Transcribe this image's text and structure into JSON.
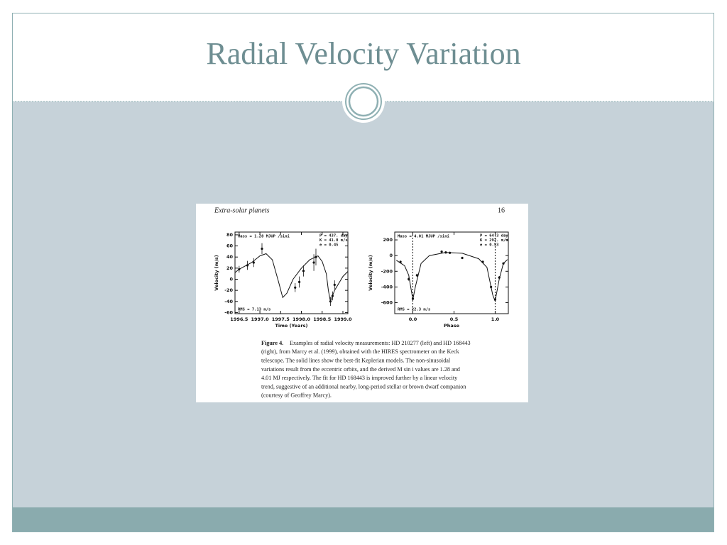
{
  "slide": {
    "title": "Radial Velocity Variation"
  },
  "figure": {
    "header": "Extra-solar planets",
    "page_number": "16",
    "panels": [
      {
        "xlim": [
          1996.4,
          1999.12
        ],
        "ylim": [
          -62,
          85
        ],
        "xticks": [
          1996.5,
          {
            "value": 1997,
            "label": "1997.0"
          },
          1997.5,
          {
            "value": 1998,
            "label": "1998.0"
          },
          1998.5,
          {
            "value": 1999,
            "label": "1999.0"
          }
        ],
        "yticks": [
          -60,
          -40,
          -20,
          0,
          20,
          40,
          60,
          80
        ],
        "xlabel": "Time  (Years)",
        "ylabel": "Velocity  (m/s)",
        "mass": "Mass = 1.28 MJUP /sini",
        "params": [
          "P = 437. day",
          "K = 41.0 m/s",
          "e = 0.45"
        ],
        "rms": "RMS = 7.13 m/s",
        "curve": {
          "x": [
            1996.4,
            1996.5,
            1996.8,
            1997.0,
            1997.15,
            1997.3,
            1997.45,
            1997.55,
            1997.65,
            1997.8,
            1998.0,
            1998.2,
            1998.4,
            1998.5,
            1998.6,
            1998.65,
            1998.7,
            1998.8,
            1999.0,
            1999.12
          ],
          "y": [
            12,
            18,
            30,
            42,
            46,
            35,
            -5,
            -33,
            -25,
            0,
            20,
            35,
            42,
            32,
            10,
            -20,
            -40,
            -20,
            5,
            14
          ]
        },
        "points": {
          "x": [
            1996.5,
            1996.7,
            1996.85,
            1997.05,
            1997.85,
            1997.95,
            1998.05,
            1998.3,
            1998.35,
            1998.7,
            1998.75,
            1998.8
          ],
          "y": [
            18,
            25,
            30,
            55,
            -15,
            -5,
            15,
            30,
            40,
            -40,
            -30,
            -10
          ],
          "err": [
            6,
            8,
            8,
            10,
            8,
            10,
            10,
            15,
            15,
            8,
            8,
            8
          ]
        },
        "dashed_x": []
      },
      {
        "xlim": [
          -0.22,
          1.16
        ],
        "ylim": [
          -740,
          300
        ],
        "xticks": [
          {
            "value": 0,
            "label": "0.0"
          },
          0.5,
          {
            "value": 1,
            "label": "1.0"
          }
        ],
        "yticks": [
          200,
          0,
          -200,
          -400,
          -600
        ],
        "xlabel": "Phase",
        "ylabel": "Velocity  (m/s)",
        "mass": "Mass = 4.01 MJUP /sini",
        "params": [
          "P = 64.3 day",
          "K = 292. m/s",
          "e = 0.53"
        ],
        "rms": "RMS = 22.3 m/s",
        "curve": {
          "x": [
            -0.2,
            -0.1,
            -0.05,
            0,
            0.03,
            0.1,
            0.2,
            0.4,
            0.6,
            0.8,
            0.9,
            0.97,
            1.0,
            1.05,
            1.1,
            1.15
          ],
          "y": [
            -60,
            -130,
            -250,
            -560,
            -400,
            -100,
            0,
            40,
            30,
            -40,
            -150,
            -500,
            -580,
            -300,
            -100,
            -50
          ]
        },
        "points": {
          "x": [
            -0.15,
            -0.05,
            0.0,
            0.05,
            0.35,
            0.4,
            0.45,
            0.6,
            0.85,
            0.95,
            1.0,
            1.05,
            1.1
          ],
          "y": [
            -80,
            -300,
            -550,
            -250,
            50,
            40,
            35,
            -30,
            -80,
            -400,
            -560,
            -280,
            -100
          ],
          "err": [
            15,
            20,
            25,
            20,
            15,
            15,
            15,
            15,
            15,
            20,
            25,
            20,
            15
          ]
        },
        "dashed_x": [
          0,
          1
        ]
      }
    ],
    "caption": {
      "label": "Figure 4.",
      "lines": [
        "Examples of radial velocity measurements: HD 210277 (left) and HD 168443",
        "(right), from Marcy et al. (1999), obtained with the HIRES spectrometer on the Keck",
        "telescope.  The solid lines show the best-fit Keplerian models.  The non-sinusoidal",
        "variations result from the eccentric orbits, and the derived M sin i values are 1.28 and",
        "4.01 MJ respectively.  The fit for HD 168443 is improved further by a linear velocity",
        "trend, suggestive of an additional nearby, long-period stellar or brown dwarf companion",
        "(courtesy of Geoffrey Marcy)."
      ]
    }
  }
}
